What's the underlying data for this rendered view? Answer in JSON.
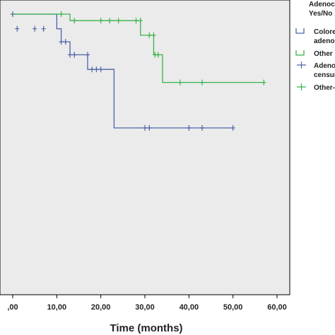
{
  "chart_data": {
    "type": "line",
    "subtype": "kaplan-meier",
    "xlabel": "Time (months)",
    "ylabel": "",
    "xlim": [
      0,
      60
    ],
    "ylim": [
      0,
      1
    ],
    "x_ticks": [
      ",00",
      "10,00",
      "20,00",
      "30,00",
      "40,00",
      "50,00",
      "60,00"
    ],
    "x_tick_values": [
      0,
      10,
      20,
      30,
      40,
      50,
      60
    ],
    "grid": false,
    "legend_position": "top-right",
    "legend_title_lines": [
      "Adenoc",
      "Yes/No"
    ],
    "legend_entries": [
      {
        "lines": [
          "Colore",
          "adenoc"
        ],
        "color": "#4d63a8",
        "marker": "line"
      },
      {
        "lines": [
          "Other"
        ],
        "color": "#37b34a",
        "marker": "line"
      },
      {
        "lines": [
          "Adeno",
          "censur"
        ],
        "color": "#4d63a8",
        "marker": "plus"
      },
      {
        "lines": [
          "Other-"
        ],
        "color": "#37b34a",
        "marker": "plus"
      }
    ],
    "series": [
      {
        "color": "#4d63a8",
        "steps": [
          [
            0,
            1.0
          ],
          [
            10,
            0.955
          ],
          [
            11,
            0.915
          ],
          [
            13,
            0.875
          ],
          [
            17,
            0.83
          ],
          [
            23,
            0.65
          ],
          [
            50,
            0.65
          ]
        ],
        "censored": [
          [
            0,
            1.0
          ],
          [
            1,
            0.955
          ],
          [
            5,
            0.955
          ],
          [
            7,
            0.955
          ],
          [
            11,
            0.915
          ],
          [
            12,
            0.915
          ],
          [
            13,
            0.875
          ],
          [
            14,
            0.875
          ],
          [
            17,
            0.875
          ],
          [
            18,
            0.83
          ],
          [
            19,
            0.83
          ],
          [
            20,
            0.83
          ],
          [
            30,
            0.65
          ],
          [
            31,
            0.65
          ],
          [
            40,
            0.65
          ],
          [
            43,
            0.65
          ],
          [
            50,
            0.65
          ]
        ]
      },
      {
        "color": "#37b34a",
        "steps": [
          [
            0,
            1.0
          ],
          [
            13,
            0.98
          ],
          [
            29,
            0.935
          ],
          [
            32,
            0.875
          ],
          [
            34,
            0.79
          ],
          [
            57,
            0.79
          ]
        ],
        "censored": [
          [
            11,
            1.0
          ],
          [
            14,
            0.98
          ],
          [
            20,
            0.98
          ],
          [
            22,
            0.98
          ],
          [
            24,
            0.98
          ],
          [
            28,
            0.98
          ],
          [
            29,
            0.98
          ],
          [
            31,
            0.935
          ],
          [
            32,
            0.935
          ],
          [
            32.3,
            0.875
          ],
          [
            33,
            0.875
          ],
          [
            38,
            0.79
          ],
          [
            43,
            0.79
          ],
          [
            57,
            0.79
          ]
        ]
      }
    ]
  }
}
